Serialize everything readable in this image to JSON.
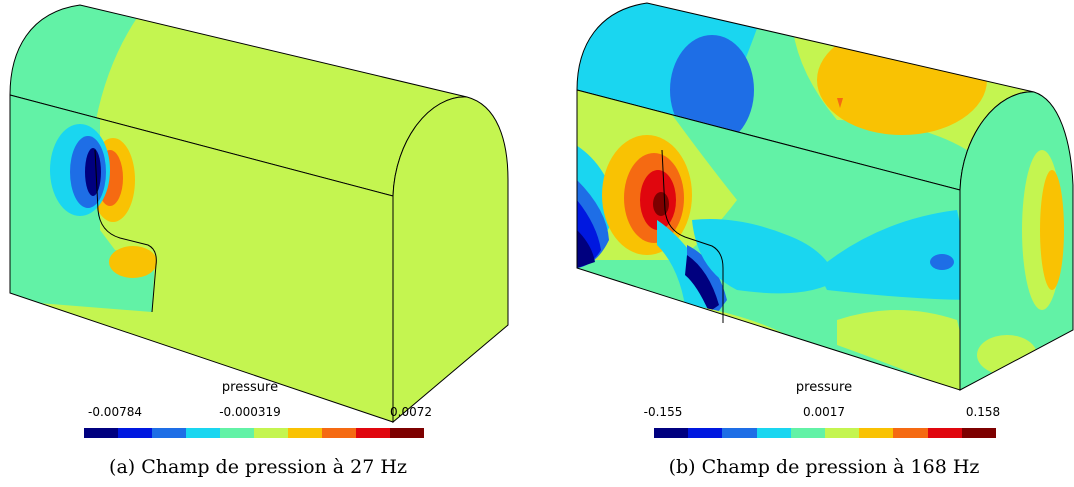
{
  "palette": [
    "#00007f",
    "#0018e0",
    "#1e6ee6",
    "#1ad6f0",
    "#62f2a6",
    "#c4f550",
    "#f9c203",
    "#f56a12",
    "#e0060e",
    "#7d0000"
  ],
  "panel_a": {
    "colorbar": {
      "title": "pressure",
      "min": "-0.00784",
      "mid": "-0.000319",
      "max": "0.0072"
    },
    "caption": "(a) Champ de pression à 27 Hz"
  },
  "panel_b": {
    "colorbar": {
      "title": "pressure",
      "min": "-0.155",
      "mid": "0.0017",
      "max": "0.158"
    },
    "caption": "(b) Champ de pression à 168 Hz"
  }
}
